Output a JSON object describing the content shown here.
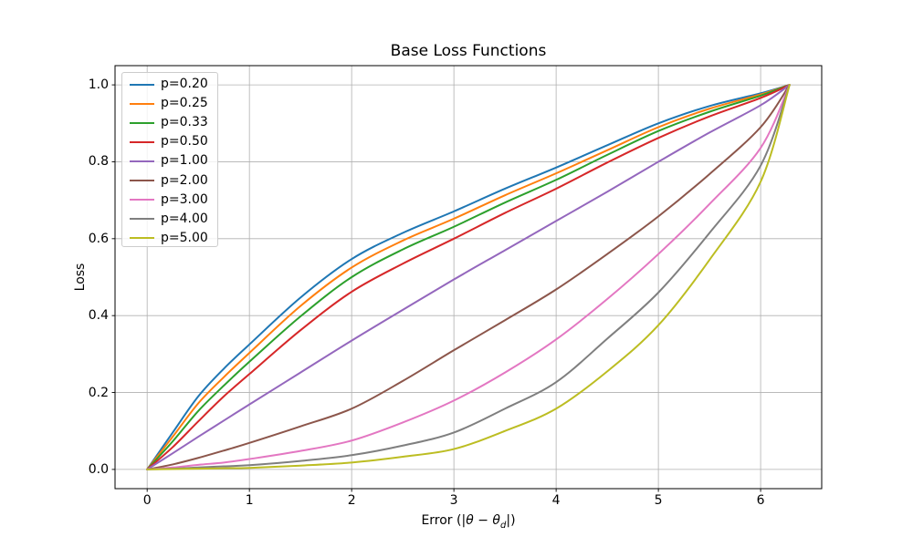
{
  "figure": {
    "background": "#ffffff",
    "grid_color": "#b0b0b0",
    "spine_color": "#000000",
    "legend_border_color": "#cccccc"
  },
  "chart_data": {
    "type": "line",
    "title": "Base Loss Functions",
    "ylabel": "Loss",
    "xlabel_plain": "Error (|θ − θ_d|)",
    "xlabel_parts": [
      {
        "t": "Error (|"
      },
      {
        "t": "θ",
        "italic": true
      },
      {
        "t": " − "
      },
      {
        "t": "θ",
        "italic": true
      },
      {
        "t": "d",
        "sub": true
      },
      {
        "t": "|)"
      }
    ],
    "xlim": [
      -0.3142,
      6.5974
    ],
    "ylim": [
      -0.05,
      1.05
    ],
    "x_ticks": [
      0,
      1,
      2,
      3,
      4,
      5,
      6
    ],
    "x_tick_labels": [
      "0",
      "1",
      "2",
      "3",
      "4",
      "5",
      "6"
    ],
    "y_ticks": [
      0.0,
      0.2,
      0.4,
      0.6,
      0.8,
      1.0
    ],
    "y_tick_labels": [
      "0.0",
      "0.2",
      "0.4",
      "0.6",
      "0.8",
      "1.0"
    ],
    "grid": true,
    "legend_position": "upper left",
    "x": [
      0,
      0.25,
      0.5,
      0.75,
      1,
      1.5,
      2,
      2.5,
      3,
      3.5,
      4,
      4.5,
      5,
      5.5,
      6,
      6.2832
    ],
    "series": [
      {
        "name": "p=0.20",
        "color": "#1f77b4",
        "values": [
          0,
          0.096,
          0.19,
          0.262,
          0.325,
          0.447,
          0.547,
          0.615,
          0.671,
          0.73,
          0.785,
          0.843,
          0.9,
          0.945,
          0.978,
          1.0
        ]
      },
      {
        "name": "p=0.25",
        "color": "#ff7f0e",
        "values": [
          0,
          0.085,
          0.172,
          0.24,
          0.303,
          0.425,
          0.525,
          0.595,
          0.652,
          0.713,
          0.77,
          0.83,
          0.89,
          0.938,
          0.975,
          1.0
        ]
      },
      {
        "name": "p=0.33",
        "color": "#2ca02c",
        "values": [
          0,
          0.073,
          0.152,
          0.218,
          0.28,
          0.398,
          0.5,
          0.572,
          0.631,
          0.694,
          0.753,
          0.818,
          0.88,
          0.93,
          0.972,
          1.0
        ]
      },
      {
        "name": "p=0.50",
        "color": "#d62728",
        "values": [
          0,
          0.058,
          0.125,
          0.19,
          0.248,
          0.362,
          0.462,
          0.535,
          0.6,
          0.667,
          0.73,
          0.798,
          0.862,
          0.918,
          0.966,
          1.0
        ]
      },
      {
        "name": "p=1.00",
        "color": "#9467bd",
        "values": [
          0,
          0.042,
          0.085,
          0.127,
          0.169,
          0.252,
          0.335,
          0.415,
          0.494,
          0.57,
          0.646,
          0.722,
          0.8,
          0.876,
          0.947,
          1.0
        ]
      },
      {
        "name": "p=2.00",
        "color": "#8c564b",
        "values": [
          0,
          0.013,
          0.03,
          0.049,
          0.069,
          0.112,
          0.158,
          0.23,
          0.31,
          0.388,
          0.468,
          0.56,
          0.658,
          0.768,
          0.89,
          1.0
        ]
      },
      {
        "name": "p=3.00",
        "color": "#e377c2",
        "values": [
          0,
          0.005,
          0.012,
          0.018,
          0.027,
          0.048,
          0.075,
          0.122,
          0.179,
          0.252,
          0.338,
          0.443,
          0.56,
          0.69,
          0.836,
          1.0
        ]
      },
      {
        "name": "p=4.00",
        "color": "#7f7f7f",
        "values": [
          0,
          0.002,
          0.005,
          0.008,
          0.011,
          0.022,
          0.037,
          0.062,
          0.096,
          0.158,
          0.227,
          0.34,
          0.46,
          0.615,
          0.79,
          1.0
        ]
      },
      {
        "name": "p=5.00",
        "color": "#bcbd22",
        "values": [
          0,
          0.001,
          0.002,
          0.003,
          0.004,
          0.01,
          0.018,
          0.033,
          0.053,
          0.1,
          0.158,
          0.255,
          0.375,
          0.545,
          0.748,
          1.0
        ]
      }
    ]
  }
}
